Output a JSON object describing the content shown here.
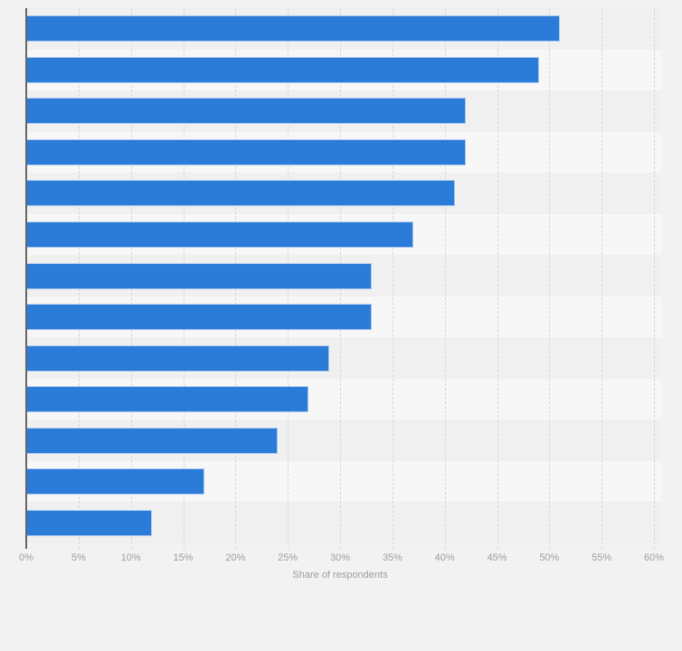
{
  "chart_data": {
    "type": "bar",
    "orientation": "horizontal",
    "title": "",
    "categories": [
      "",
      "",
      "",
      "",
      "",
      "",
      "",
      "",
      "",
      "",
      "",
      "",
      ""
    ],
    "values": [
      51,
      49,
      42,
      42,
      41,
      37,
      33,
      33,
      29,
      27,
      24,
      17,
      12
    ],
    "value_unit": "%",
    "xlabel": "Share of respondents",
    "ylabel": "",
    "xlim": [
      0,
      60
    ],
    "xtick_step": 5,
    "xtick_labels": [
      "0%",
      "5%",
      "10%",
      "15%",
      "20%",
      "25%",
      "30%",
      "35%",
      "40%",
      "45%",
      "50%",
      "55%",
      "60%"
    ],
    "grid": "vertical-dashed",
    "legend": "none"
  },
  "colors": {
    "page_background": "#f2f2f2",
    "band_odd": "#f0f0f0",
    "band_even": "#f7f7f7",
    "bar_fill": "#2b7bd8",
    "bar_border": "#aecbf0",
    "gridline": "#d7d7d7",
    "axis_line": "#666666",
    "tick_label": "#9e9e9e",
    "axis_title": "#9e9e9e"
  }
}
